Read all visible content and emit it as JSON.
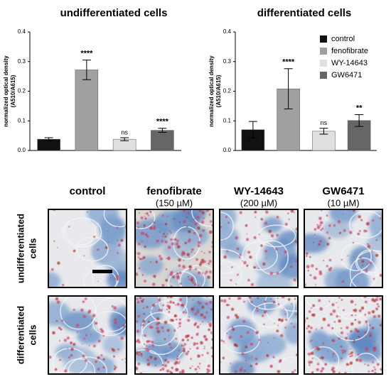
{
  "chart_data": [
    {
      "type": "bar",
      "title": "undifferentiated cells",
      "ylabel": [
        "normalized optical density",
        "(A510/A615)"
      ],
      "ylim": [
        0,
        0.4
      ],
      "yticks": [
        {
          "value": 0,
          "label": "0.0"
        },
        {
          "value": 0.1,
          "label": "0.1"
        },
        {
          "value": 0.2,
          "label": "0.2"
        },
        {
          "value": 0.3,
          "label": "0.3"
        },
        {
          "value": 0.4,
          "label": "0.4"
        }
      ],
      "legend": false,
      "series": [
        {
          "name": "control",
          "color": "#111111",
          "values": [
            0.038
          ],
          "errors": [
            0.005
          ],
          "annotations": [
            null
          ]
        },
        {
          "name": "fenofibrate",
          "color": "#a0a0a0",
          "values": [
            0.272
          ],
          "errors": [
            0.033
          ],
          "annotations": [
            "****"
          ]
        },
        {
          "name": "WY-14643",
          "color": "#e0e0e0",
          "values": [
            0.038
          ],
          "errors": [
            0.005
          ],
          "annotations": [
            "ns"
          ]
        },
        {
          "name": "GW6471",
          "color": "#666666",
          "values": [
            0.068
          ],
          "errors": [
            0.007
          ],
          "annotations": [
            "****"
          ]
        }
      ]
    },
    {
      "type": "bar",
      "title": "differentiated cells",
      "ylabel": [
        "normalized optical density",
        "(A510/A615)"
      ],
      "ylim": [
        0,
        0.4
      ],
      "yticks": [
        {
          "value": 0,
          "label": "0.0"
        },
        {
          "value": 0.1,
          "label": "0.1"
        },
        {
          "value": 0.2,
          "label": "0.2"
        },
        {
          "value": 0.3,
          "label": "0.3"
        },
        {
          "value": 0.4,
          "label": "0.4"
        }
      ],
      "legend": "upper right",
      "series": [
        {
          "name": "control",
          "color": "#111111",
          "values": [
            0.07
          ],
          "errors": [
            0.028
          ],
          "annotations": [
            null
          ]
        },
        {
          "name": "fenofibrate",
          "color": "#a0a0a0",
          "values": [
            0.208
          ],
          "errors": [
            0.068
          ],
          "annotations": [
            "****"
          ]
        },
        {
          "name": "WY-14643",
          "color": "#e0e0e0",
          "values": [
            0.065
          ],
          "errors": [
            0.01
          ],
          "annotations": [
            "ns"
          ]
        },
        {
          "name": "GW6471",
          "color": "#666666",
          "values": [
            0.101
          ],
          "errors": [
            0.02
          ],
          "annotations": [
            "**"
          ]
        }
      ]
    }
  ],
  "image_grid": {
    "columns": [
      {
        "name": "control",
        "concentration": null
      },
      {
        "name": "fenofibrate",
        "concentration": "(150 µM)"
      },
      {
        "name": "WY-14643",
        "concentration": "(200 µM)"
      },
      {
        "name": "GW6471",
        "concentration": "(10 µM)"
      }
    ],
    "rows": [
      {
        "lines": [
          "undifferentiated",
          "cells"
        ]
      },
      {
        "lines": [
          "differentiated",
          "cells"
        ]
      }
    ]
  }
}
